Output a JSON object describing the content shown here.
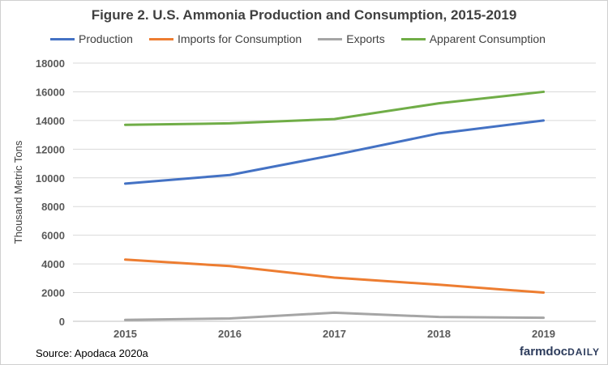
{
  "chart_data": {
    "type": "line",
    "title": "Figure 2. U.S. Ammonia Production and Consumption, 2015-2019",
    "xlabel": "",
    "ylabel": "Thousand Metric Tons",
    "categories": [
      "2015",
      "2016",
      "2017",
      "2018",
      "2019"
    ],
    "ylim": [
      0,
      18000
    ],
    "yticks": [
      0,
      2000,
      4000,
      6000,
      8000,
      10000,
      12000,
      14000,
      16000,
      18000
    ],
    "grid": true,
    "legend_position": "top",
    "series": [
      {
        "name": "Production",
        "color": "#4472c4",
        "values": [
          9600,
          10200,
          11600,
          13100,
          14000
        ]
      },
      {
        "name": "Imports for Consumption",
        "color": "#ed7d31",
        "values": [
          4300,
          3850,
          3050,
          2550,
          2000
        ]
      },
      {
        "name": "Exports",
        "color": "#a5a5a5",
        "values": [
          100,
          200,
          600,
          300,
          250
        ]
      },
      {
        "name": "Apparent Consumption",
        "color": "#70ad47",
        "values": [
          13700,
          13800,
          14100,
          15200,
          16000
        ]
      }
    ]
  },
  "footer": {
    "source": "Source:  Apodaca 2020a",
    "brand_main": "farmdoc",
    "brand_sub": "DAILY"
  }
}
